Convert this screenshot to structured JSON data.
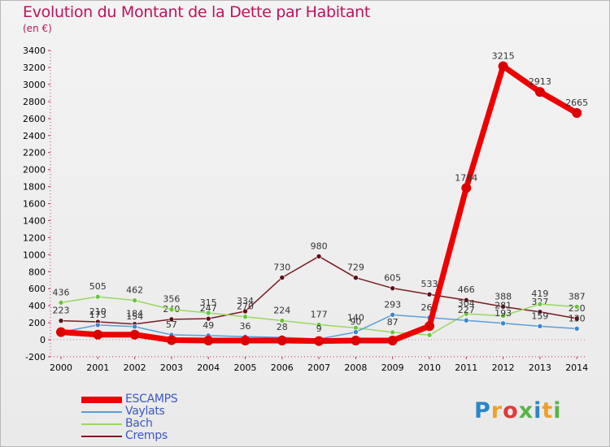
{
  "title": "Evolution du Montant de la Dette par Habitant",
  "subtitle": "(en €)",
  "logo_text": "Proxiti",
  "colors": {
    "title": "#c0125c",
    "axis_text": "#000000",
    "legend_text": "#3d57c4",
    "logo": [
      "#2b86c8",
      "#f0a02a",
      "#e03a3a",
      "#58b44a",
      "#2b86c8",
      "#f0a02a",
      "#58b44a"
    ]
  },
  "chart_data": {
    "type": "line",
    "title": "Evolution du Montant de la Dette par Habitant",
    "subtitle": "(en €)",
    "x": [
      2000,
      2001,
      2002,
      2003,
      2004,
      2005,
      2006,
      2007,
      2008,
      2009,
      2010,
      2011,
      2012,
      2013,
      2014
    ],
    "ylim": [
      -200,
      3400
    ],
    "yticks": [
      -200,
      0,
      200,
      400,
      600,
      800,
      1000,
      1200,
      1400,
      1600,
      1800,
      2000,
      2200,
      2400,
      2600,
      2800,
      3000,
      3200,
      3400
    ],
    "grid": false,
    "legend_position": "bottom-left",
    "series": [
      {
        "name": "Cremps",
        "color": "#7a1a24",
        "marker": "#5a1018",
        "width": 1.5,
        "values": [
          223,
          210,
          184,
          240,
          247,
          334,
          730,
          980,
          729,
          605,
          533,
          466,
          388,
          327,
          250
        ],
        "labels": [
          "223",
          "210",
          "184",
          "240",
          "247",
          "334",
          "730",
          "980",
          "729",
          "605",
          "533",
          "466",
          "388",
          "327",
          "250"
        ]
      },
      {
        "name": "Bach",
        "color": "#98d860",
        "marker": "#6cc43c",
        "width": 1.5,
        "values": [
          436,
          505,
          462,
          356,
          315,
          270,
          224,
          177,
          140,
          87,
          55,
          304,
          281,
          419,
          387
        ],
        "labels": [
          "436",
          "505",
          "462",
          "356",
          "315",
          "270",
          "224",
          "177",
          "140",
          "87",
          "",
          "304",
          "281",
          "419",
          "387"
        ]
      },
      {
        "name": "Vaylats",
        "color": "#5a9fd8",
        "marker": "#3a86cc",
        "width": 1.5,
        "values": [
          90,
          173,
          154,
          57,
          49,
          36,
          28,
          9,
          90,
          293,
          260,
          227,
          193,
          159,
          130
        ],
        "labels": [
          "",
          "173",
          "154",
          "57",
          "49",
          "36",
          "28",
          "9",
          "90",
          "293",
          "260",
          "227",
          "193",
          "159",
          "130"
        ]
      },
      {
        "name": "ESCAMPS",
        "color": "#ee0000",
        "marker": "#dd0000",
        "width": 7,
        "values": [
          90,
          60,
          60,
          -5,
          -10,
          -10,
          -10,
          -15,
          -10,
          -10,
          160,
          1784,
          3215,
          2913,
          2665
        ],
        "labels": [
          "",
          "",
          "",
          "",
          "",
          "",
          "",
          "",
          "",
          "",
          "",
          "1784",
          "3215",
          "2913",
          "2665"
        ]
      }
    ]
  },
  "legend": [
    {
      "name": "ESCAMPS",
      "color": "#ee0000",
      "thickness": 8
    },
    {
      "name": "Vaylats",
      "color": "#5a9fd8",
      "thickness": 2
    },
    {
      "name": "Bach",
      "color": "#98d860",
      "thickness": 2
    },
    {
      "name": "Cremps",
      "color": "#7a1a24",
      "thickness": 2
    }
  ]
}
